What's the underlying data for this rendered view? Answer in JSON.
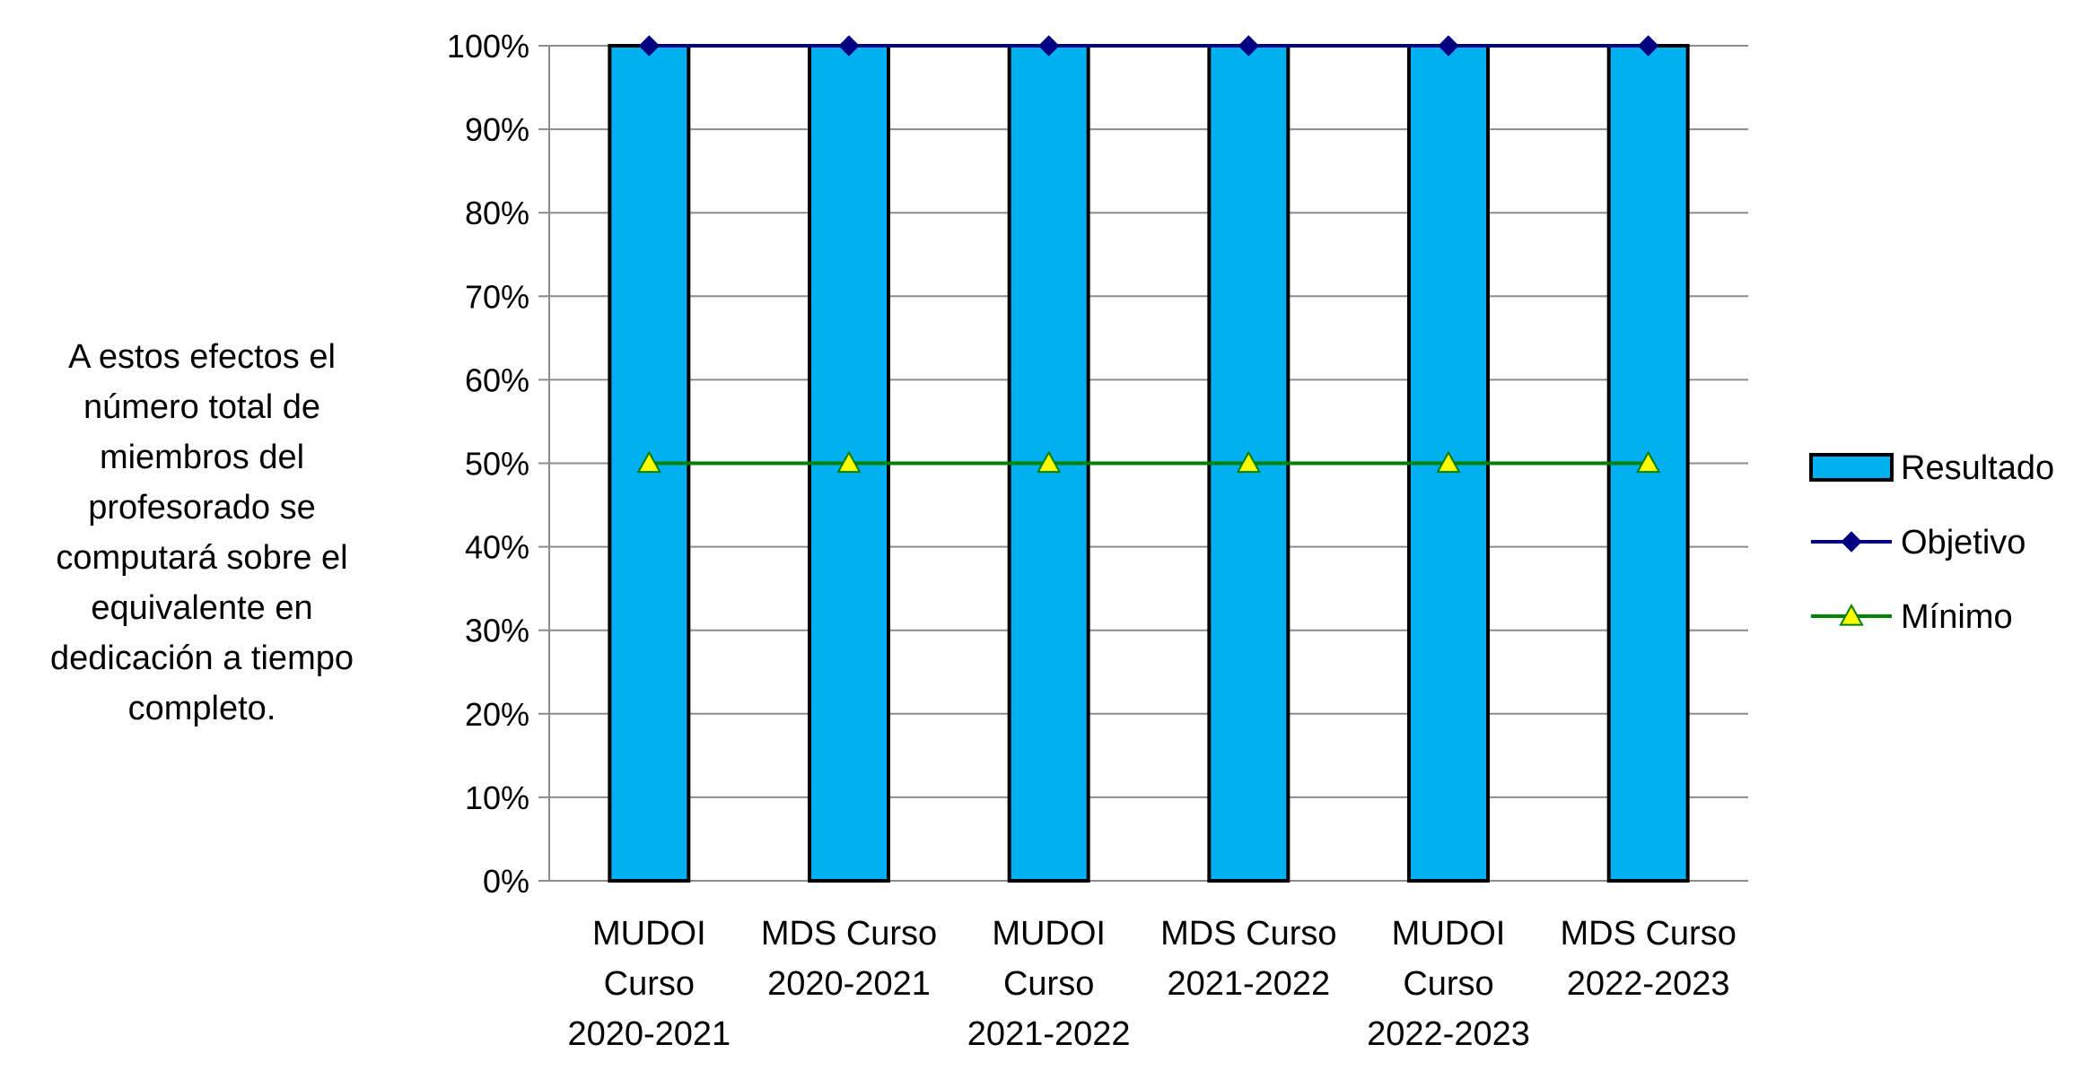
{
  "note": "A estos efectos el número total de miembros del profesorado se computará sobre el equivalente en dedicación a tiempo completo.",
  "chart_data": {
    "type": "bar",
    "categories": [
      [
        "MUDOI",
        "Curso",
        "2020-2021"
      ],
      [
        "MDS Curso",
        "2020-2021"
      ],
      [
        "MUDOI",
        "Curso",
        "2021-2022"
      ],
      [
        "MDS Curso",
        "2021-2022"
      ],
      [
        "MUDOI",
        "Curso",
        "2022-2023"
      ],
      [
        "MDS Curso",
        "2022-2023"
      ]
    ],
    "series": [
      {
        "name": "Resultado",
        "kind": "bar",
        "color": "#00B0F0",
        "values": [
          1,
          1,
          1,
          1,
          1,
          1
        ]
      },
      {
        "name": "Objetivo",
        "kind": "line",
        "marker": "diamond",
        "color": "#000080",
        "values": [
          1,
          1,
          1,
          1,
          1,
          1
        ]
      },
      {
        "name": "Mínimo",
        "kind": "line",
        "marker": "triangle",
        "color": "#008000",
        "marker_fill": "#FFFF00",
        "values": [
          0.5,
          0.5,
          0.5,
          0.5,
          0.5,
          0.5
        ]
      }
    ],
    "yticks": [
      "0%",
      "10%",
      "20%",
      "30%",
      "40%",
      "50%",
      "60%",
      "70%",
      "80%",
      "90%",
      "100%"
    ],
    "ylim": [
      0,
      1
    ],
    "grid": true,
    "legend_position": "right"
  }
}
